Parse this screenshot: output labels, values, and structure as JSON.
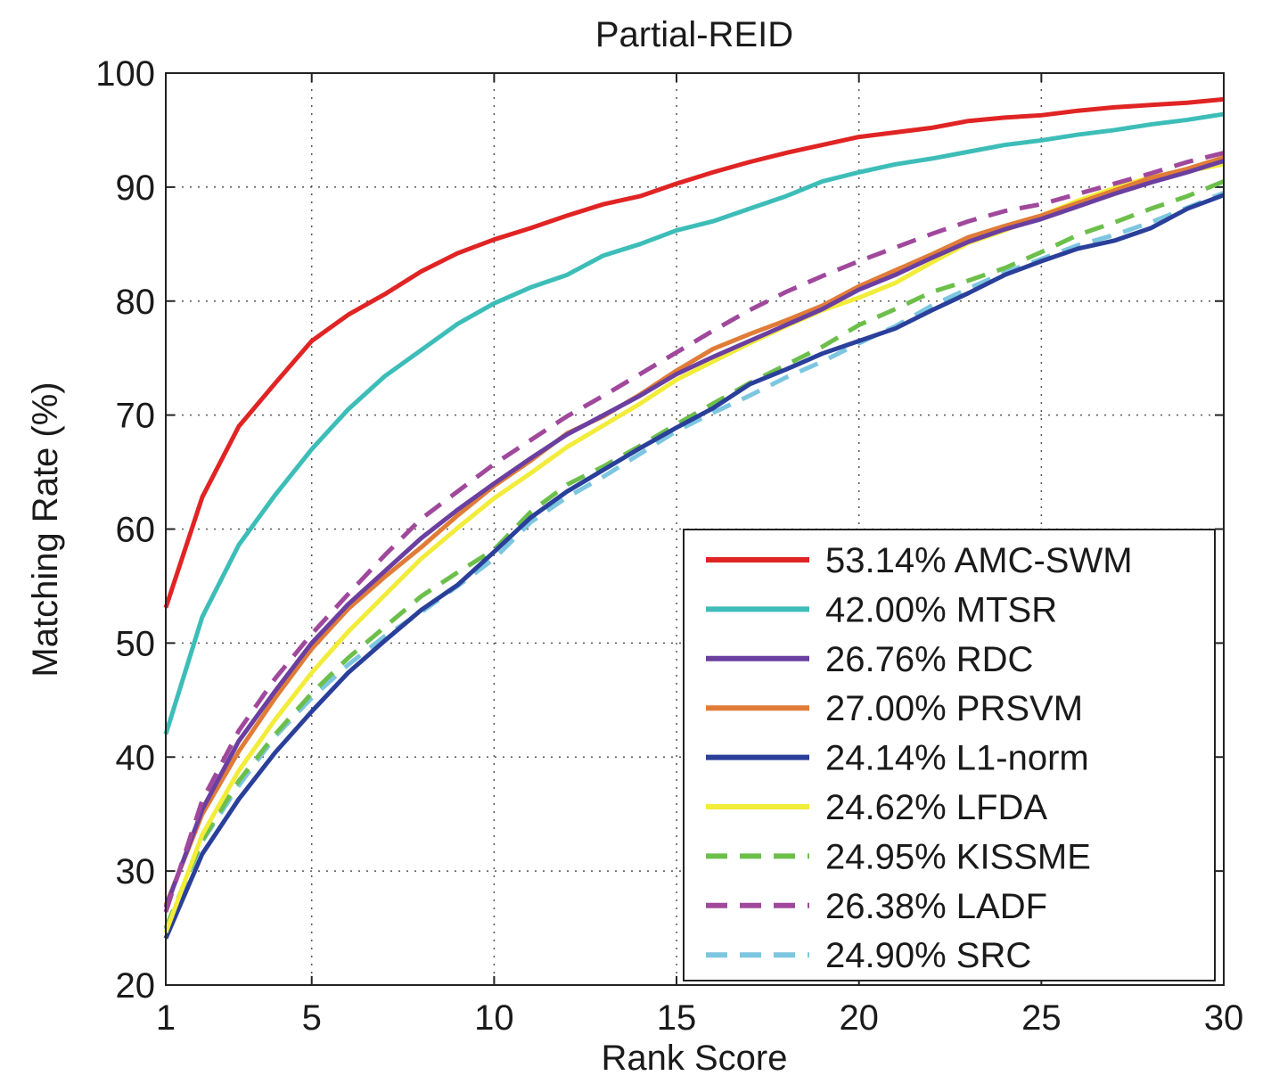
{
  "chart_data": {
    "type": "line",
    "title": "Partial-REID",
    "xlabel": "Rank Score",
    "ylabel": "Matching Rate (%)",
    "xlim": [
      1,
      30
    ],
    "ylim": [
      20,
      100
    ],
    "xticks": [
      1,
      5,
      10,
      15,
      20,
      25,
      30
    ],
    "yticks": [
      20,
      30,
      40,
      50,
      60,
      70,
      80,
      90,
      100
    ],
    "grid": true,
    "legend_position": "bottom-right",
    "x": [
      1,
      2,
      3,
      4,
      5,
      6,
      7,
      8,
      9,
      10,
      11,
      12,
      13,
      14,
      15,
      16,
      17,
      18,
      19,
      20,
      21,
      22,
      23,
      24,
      25,
      26,
      27,
      28,
      29,
      30
    ],
    "series": [
      {
        "name": "53.14% AMC-SWM",
        "color": "#e02424",
        "dash": false,
        "values": [
          53.1,
          62.8,
          69.0,
          72.8,
          76.5,
          78.8,
          80.6,
          82.6,
          84.2,
          85.4,
          86.4,
          87.5,
          88.5,
          89.2,
          90.3,
          91.3,
          92.2,
          93.0,
          93.7,
          94.4,
          94.8,
          95.2,
          95.8,
          96.1,
          96.3,
          96.7,
          97.0,
          97.2,
          97.4,
          97.7
        ]
      },
      {
        "name": "42.00% MTSR",
        "color": "#3dbdb8",
        "dash": false,
        "values": [
          42.0,
          52.3,
          58.6,
          63.0,
          67.0,
          70.5,
          73.4,
          75.7,
          78.0,
          79.8,
          81.2,
          82.3,
          84.0,
          85.0,
          86.2,
          87.0,
          88.1,
          89.2,
          90.5,
          91.3,
          92.0,
          92.5,
          93.1,
          93.7,
          94.1,
          94.6,
          95.0,
          95.5,
          95.9,
          96.4
        ]
      },
      {
        "name": "26.76% RDC",
        "color": "#6a3fa0",
        "dash": false,
        "values": [
          26.8,
          35.4,
          41.4,
          45.8,
          50.0,
          53.4,
          56.3,
          59.2,
          61.7,
          64.0,
          66.2,
          68.3,
          70.0,
          71.7,
          73.6,
          75.1,
          76.5,
          77.9,
          79.3,
          81.0,
          82.3,
          83.8,
          85.2,
          86.3,
          87.2,
          88.3,
          89.4,
          90.4,
          91.3,
          92.3
        ]
      },
      {
        "name": "27.00% PRSVM",
        "color": "#e07c38",
        "dash": false,
        "values": [
          27.0,
          35.0,
          40.5,
          45.2,
          49.5,
          53.0,
          55.8,
          58.4,
          61.2,
          63.8,
          66.0,
          68.4,
          69.9,
          71.8,
          73.9,
          75.8,
          77.1,
          78.3,
          79.6,
          81.3,
          82.7,
          84.1,
          85.6,
          86.6,
          87.5,
          88.6,
          89.7,
          90.8,
          91.6,
          92.6
        ]
      },
      {
        "name": "24.14% L1-norm",
        "color": "#2a3f9a",
        "dash": false,
        "values": [
          24.1,
          31.5,
          36.3,
          40.4,
          44.0,
          47.4,
          50.2,
          52.9,
          55.1,
          58.0,
          61.0,
          63.3,
          65.2,
          67.1,
          68.9,
          70.6,
          72.7,
          74.0,
          75.4,
          76.5,
          77.6,
          79.2,
          80.7,
          82.3,
          83.5,
          84.6,
          85.3,
          86.4,
          88.1,
          89.3
        ]
      },
      {
        "name": "24.62% LFDA",
        "color": "#f2ec3a",
        "dash": false,
        "values": [
          24.6,
          33.2,
          38.8,
          43.3,
          47.4,
          51.0,
          54.2,
          57.4,
          60.1,
          62.7,
          64.9,
          67.2,
          69.1,
          71.0,
          73.1,
          74.7,
          76.3,
          77.8,
          79.2,
          80.3,
          81.6,
          83.4,
          85.1,
          86.2,
          87.5,
          88.8,
          89.9,
          90.9,
          91.4,
          92.0
        ]
      },
      {
        "name": "24.95% KISSME",
        "color": "#6cbf4a",
        "dash": true,
        "values": [
          25.0,
          32.7,
          37.9,
          42.0,
          45.6,
          48.7,
          51.4,
          54.1,
          56.2,
          58.2,
          61.5,
          63.9,
          65.5,
          67.3,
          69.2,
          71.0,
          72.8,
          74.4,
          76.0,
          77.9,
          79.3,
          80.8,
          81.8,
          82.9,
          84.3,
          85.8,
          86.9,
          88.1,
          89.2,
          90.5
        ]
      },
      {
        "name": "26.38% LADF",
        "color": "#a0489c",
        "dash": true,
        "values": [
          26.4,
          36.2,
          42.3,
          46.9,
          50.8,
          54.3,
          57.7,
          60.9,
          63.3,
          65.7,
          67.8,
          69.9,
          71.7,
          73.6,
          75.5,
          77.4,
          79.2,
          80.8,
          82.2,
          83.5,
          84.7,
          85.9,
          87.0,
          87.9,
          88.5,
          89.4,
          90.3,
          91.2,
          92.2,
          93.0
        ]
      },
      {
        "name": "24.90% SRC",
        "color": "#7cc6e0",
        "dash": true,
        "values": [
          24.9,
          32.6,
          37.5,
          41.8,
          45.2,
          48.1,
          50.6,
          52.7,
          55.0,
          57.4,
          60.6,
          62.8,
          64.6,
          66.6,
          68.6,
          70.2,
          71.7,
          73.3,
          74.7,
          76.3,
          77.8,
          79.6,
          81.1,
          82.5,
          83.7,
          84.9,
          85.8,
          86.9,
          88.2,
          89.5
        ]
      }
    ]
  }
}
